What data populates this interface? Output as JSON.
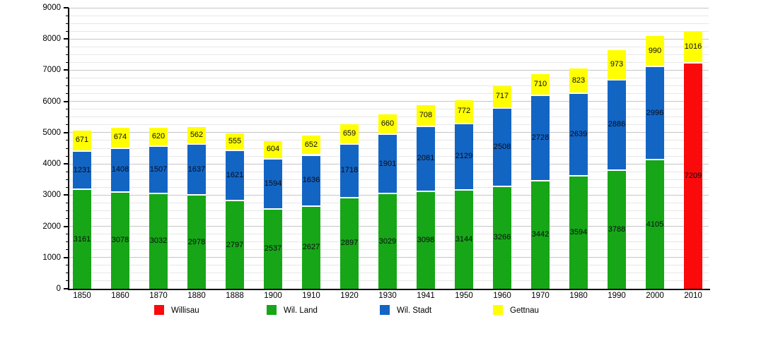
{
  "chart_data": {
    "type": "bar",
    "stacked": true,
    "title": "",
    "xlabel": "",
    "ylabel": "",
    "ylim": [
      0,
      9000
    ],
    "ytick_step": 1000,
    "minor_gridline_step": 250,
    "grid": true,
    "legend_position": "bottom",
    "categories": [
      "1850",
      "1860",
      "1870",
      "1880",
      "1888",
      "1900",
      "1910",
      "1920",
      "1930",
      "1941",
      "1950",
      "1960",
      "1970",
      "1980",
      "1990",
      "2000",
      "2010"
    ],
    "series": [
      {
        "name": "Wil. Land",
        "color": "#17a617",
        "values": [
          3161,
          3078,
          3032,
          2978,
          2797,
          2537,
          2627,
          2897,
          3029,
          3098,
          3144,
          3266,
          3442,
          3594,
          3788,
          4105,
          null
        ]
      },
      {
        "name": "Wil. Stadt",
        "color": "#1365c4",
        "values": [
          1231,
          1408,
          1507,
          1637,
          1621,
          1594,
          1636,
          1718,
          1901,
          2081,
          2129,
          2508,
          2728,
          2639,
          2886,
          2996,
          null
        ]
      },
      {
        "name": "Willisau",
        "color": "#fa0a0a",
        "values": [
          null,
          null,
          null,
          null,
          null,
          null,
          null,
          null,
          null,
          null,
          null,
          null,
          null,
          null,
          null,
          null,
          7209
        ]
      },
      {
        "name": "Gettnau",
        "color": "#ffff00",
        "values": [
          671,
          674,
          620,
          562,
          555,
          604,
          652,
          659,
          660,
          708,
          772,
          717,
          710,
          823,
          973,
          990,
          1016
        ]
      }
    ],
    "legend": [
      {
        "label": "Willisau",
        "color": "#fa0a0a"
      },
      {
        "label": "Wil. Land",
        "color": "#17a617"
      },
      {
        "label": "Wil. Stadt",
        "color": "#1365c4"
      },
      {
        "label": "Gettnau",
        "color": "#ffff00"
      }
    ],
    "yticks": [
      0,
      1000,
      2000,
      3000,
      4000,
      5000,
      6000,
      7000,
      8000,
      9000
    ]
  }
}
